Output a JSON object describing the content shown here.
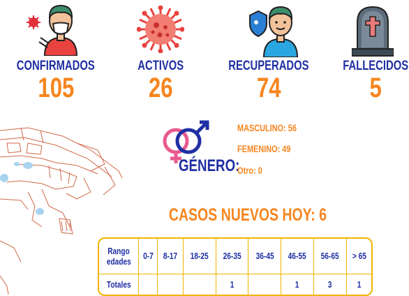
{
  "stats": [
    {
      "label": "CONFIRMADOS",
      "value": "105",
      "icon": "doctor-with-virus-icon"
    },
    {
      "label": "ACTIVOS",
      "value": "26",
      "icon": "virus-icon"
    },
    {
      "label": "RECUPERADOS",
      "value": "74",
      "icon": "recovered-person-shield-icon"
    },
    {
      "label": "FALLECIDOS",
      "value": "5",
      "icon": "tombstone-icon"
    }
  ],
  "gender": {
    "label": "GÉNERO:",
    "masculino": "MASCULINO: 56",
    "femenino": "FEMENINO: 49",
    "otro": "Otro: 0",
    "icon": "gender-symbols-icon"
  },
  "new_cases": "CASOS NUEVOS HOY: 6",
  "age_table": {
    "row_header_1": "Rango edades",
    "row_header_2": "Totales",
    "ranges": [
      "0-7",
      "8-17",
      "18-25",
      "26-35",
      "36-45",
      "46-55",
      "56-65",
      "> 65"
    ],
    "totals": [
      "",
      "",
      "",
      "1",
      "",
      "1",
      "3",
      "1"
    ]
  },
  "colors": {
    "accent_blue": "#1f2fa3",
    "accent_orange": "#f6851f",
    "table_border": "#f0b400"
  }
}
